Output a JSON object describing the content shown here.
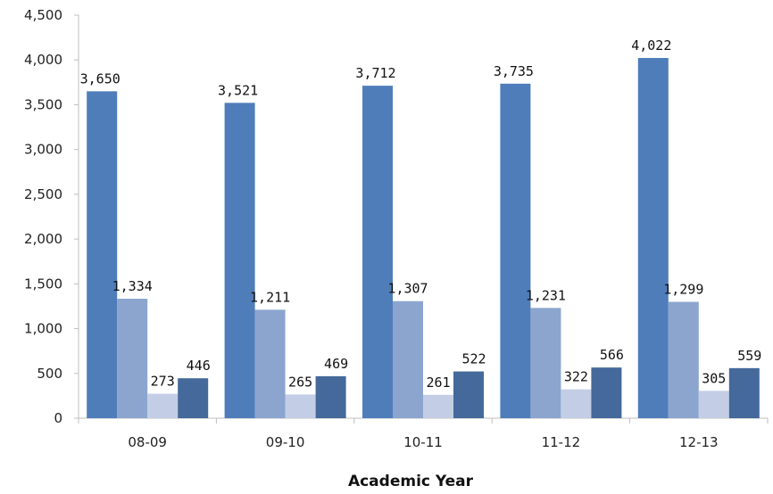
{
  "chart_data": {
    "type": "bar",
    "title": "",
    "xlabel": "Academic Year",
    "ylabel": "",
    "categories": [
      "08-09",
      "09-10",
      "10-11",
      "11-12",
      "12-13"
    ],
    "ylim": [
      0,
      4500
    ],
    "yticks": [
      0,
      500,
      1000,
      1500,
      2000,
      2500,
      3000,
      3500,
      4000,
      4500
    ],
    "ytick_labels": [
      "0",
      "500",
      "1,000",
      "1,500",
      "2,000",
      "2,500",
      "3,000",
      "3,500",
      "4,000",
      "4,500"
    ],
    "grid": false,
    "legend": "none",
    "series": [
      {
        "color": "#4F7DBA",
        "values": [
          3650,
          3521,
          3712,
          3735,
          4022
        ],
        "labels": [
          "3,650",
          "3,521",
          "3,712",
          "3,735",
          "4,022"
        ]
      },
      {
        "color": "#8BA5CF",
        "values": [
          1334,
          1211,
          1307,
          1231,
          1299
        ],
        "labels": [
          "1,334",
          "1,211",
          "1,307",
          "1,231",
          "1,299"
        ]
      },
      {
        "color": "#C3CEE6",
        "values": [
          273,
          265,
          261,
          322,
          305
        ],
        "labels": [
          "273",
          "265",
          "261",
          "322",
          "305"
        ]
      },
      {
        "color": "#44699A",
        "values": [
          446,
          469,
          522,
          566,
          559
        ],
        "labels": [
          "446",
          "469",
          "522",
          "566",
          "559"
        ]
      }
    ]
  }
}
